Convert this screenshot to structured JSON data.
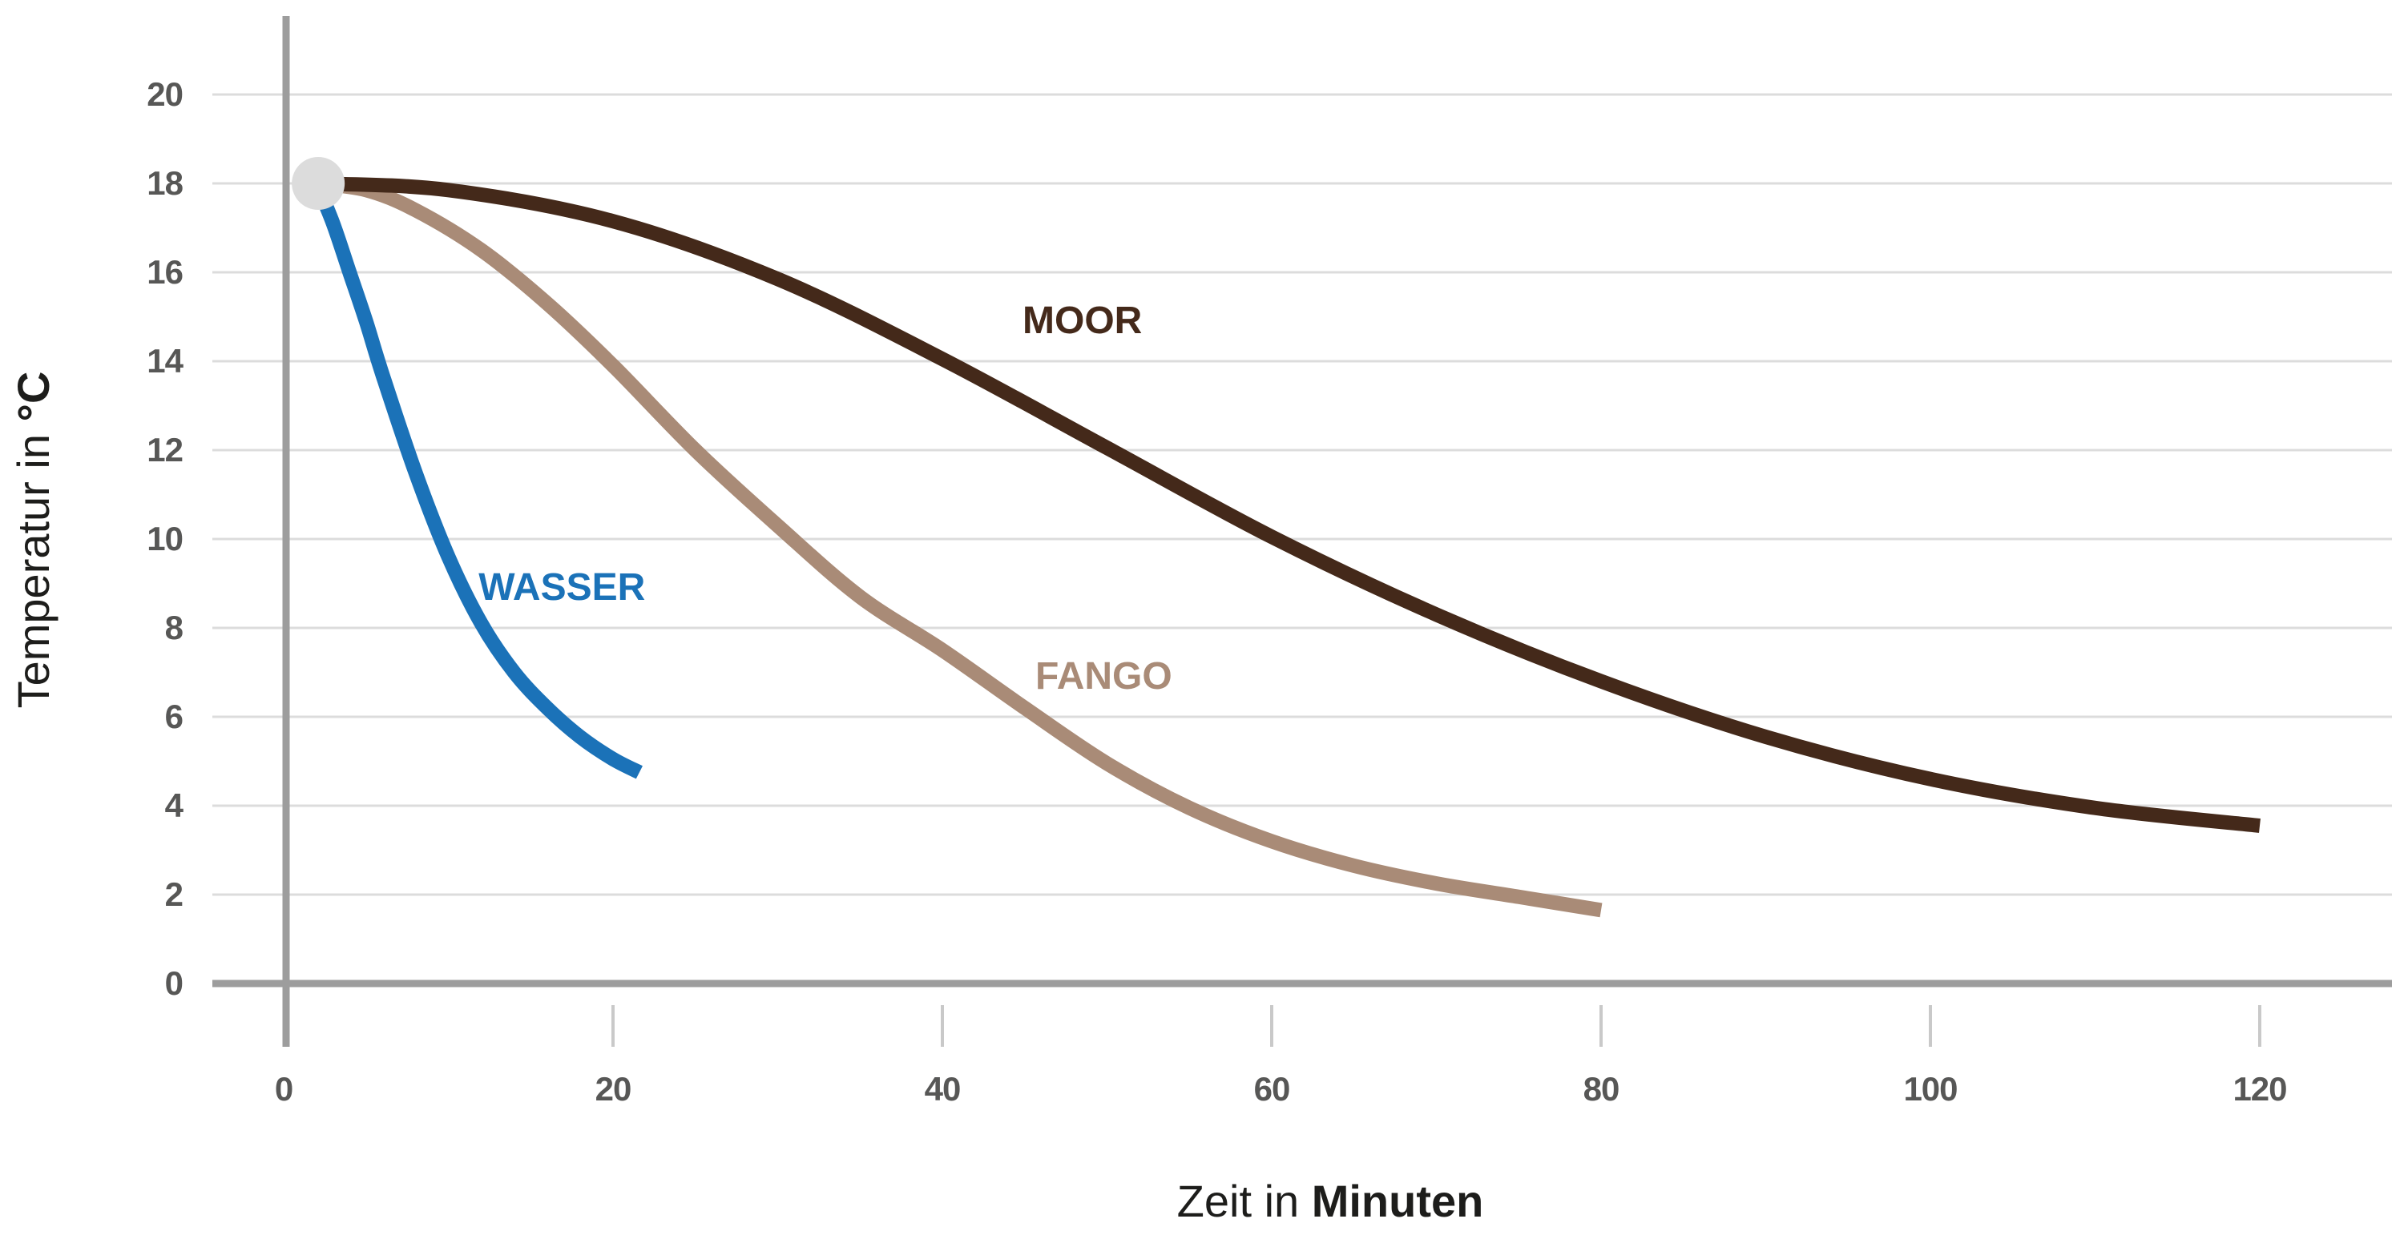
{
  "chart_data": {
    "type": "line",
    "xlabel_regular": "Zeit in ",
    "xlabel_bold": "Minuten",
    "ylabel_regular": "Temperatur in ",
    "ylabel_bold": "°C",
    "xlim": [
      0,
      120
    ],
    "ylim": [
      0,
      20
    ],
    "xticks": [
      0,
      20,
      40,
      60,
      80,
      100,
      120
    ],
    "yticks": [
      0,
      2,
      4,
      6,
      8,
      10,
      12,
      14,
      16,
      18,
      20
    ],
    "grid": "horizontal",
    "legend_position": "inline-labels",
    "start_marker": {
      "x": 2.1,
      "y": 18,
      "color": "#dcdcdc"
    },
    "series": [
      {
        "name": "WASSER",
        "color": "#1b72b8",
        "label_pos": {
          "x": 16.9,
          "y": 8.9
        },
        "points": [
          [
            2,
            18
          ],
          [
            3,
            17.1
          ],
          [
            4,
            16.0
          ],
          [
            5,
            14.9
          ],
          [
            6,
            13.7
          ],
          [
            8,
            11.5
          ],
          [
            10,
            9.6
          ],
          [
            12,
            8.1
          ],
          [
            14,
            7.0
          ],
          [
            16,
            6.2
          ],
          [
            18,
            5.55
          ],
          [
            20,
            5.05
          ],
          [
            21.6,
            4.75
          ]
        ]
      },
      {
        "name": "FANGO",
        "color": "#a98b77",
        "label_pos": {
          "x": 49.8,
          "y": 6.9
        },
        "points": [
          [
            2,
            18
          ],
          [
            5,
            17.85
          ],
          [
            8,
            17.4
          ],
          [
            12,
            16.5
          ],
          [
            16,
            15.3
          ],
          [
            20,
            13.9
          ],
          [
            25,
            12.0
          ],
          [
            30,
            10.3
          ],
          [
            35,
            8.7
          ],
          [
            40,
            7.5
          ],
          [
            45,
            6.2
          ],
          [
            50,
            4.95
          ],
          [
            55,
            3.95
          ],
          [
            60,
            3.2
          ],
          [
            65,
            2.65
          ],
          [
            70,
            2.25
          ],
          [
            75,
            1.95
          ],
          [
            80,
            1.65
          ]
        ]
      },
      {
        "name": "MOOR",
        "color": "#44291a",
        "label_pos": {
          "x": 48.5,
          "y": 14.9
        },
        "points": [
          [
            2,
            18
          ],
          [
            10,
            17.85
          ],
          [
            20,
            17.15
          ],
          [
            30,
            15.85
          ],
          [
            40,
            14.05
          ],
          [
            50,
            12.05
          ],
          [
            60,
            10.05
          ],
          [
            70,
            8.3
          ],
          [
            80,
            6.8
          ],
          [
            90,
            5.55
          ],
          [
            100,
            4.6
          ],
          [
            110,
            3.95
          ],
          [
            120,
            3.55
          ]
        ]
      }
    ]
  },
  "colors": {
    "axis": "#9d9d9d",
    "gridline": "#dcdcdc",
    "xtick": "#c9c9c9",
    "tick_label": "#575756",
    "title_text": "#1d1d1b",
    "background": "#ffffff"
  }
}
